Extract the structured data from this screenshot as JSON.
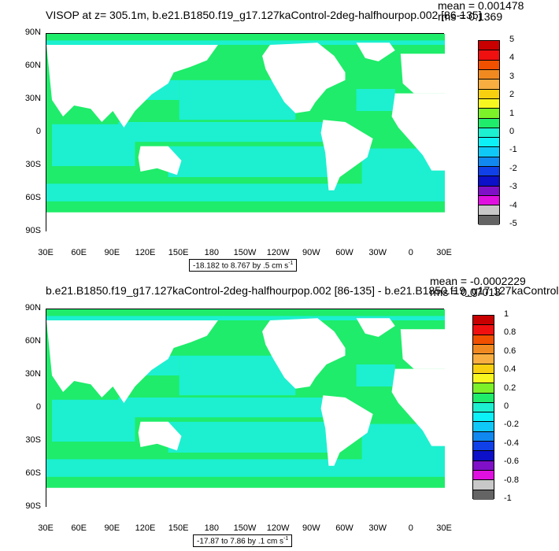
{
  "panels": [
    {
      "title": "VISOP at z= 305.1m, b.e21.B1850.f19_g17.127kaControl-2deg-halfhourpop.002 [86-135]",
      "mean": "mean = 0.001478",
      "rms": "rms = 0.1369",
      "range_text": "-18.182 to 8.767 by .5 cm s",
      "range_sup": "-1",
      "colorbar_labels": [
        "5",
        "4",
        "3",
        "2",
        "1",
        "0",
        "-1",
        "-2",
        "-3",
        "-4",
        "-5"
      ]
    },
    {
      "title": "b.e21.B1850.f19_g17.127kaControl-2deg-halfhourpop.002 [86-135] - b.e21.B1850.f19_g17.127kaControl",
      "mean": "mean = -0.0002229",
      "rms": "rms = 0.07013",
      "range_text": "-17.87 to 7.86 by .1 cm s",
      "range_sup": "-1",
      "colorbar_labels": [
        "1",
        "0.8",
        "0.6",
        "0.4",
        "0.2",
        "0",
        "-0.2",
        "-0.4",
        "-0.6",
        "-0.8",
        "-1"
      ]
    }
  ],
  "y_axis_labels": [
    "90N",
    "60N",
    "30N",
    "0",
    "30S",
    "60S",
    "90S"
  ],
  "x_axis_labels": [
    "30E",
    "60E",
    "90E",
    "120E",
    "150E",
    "180",
    "150W",
    "120W",
    "90W",
    "60W",
    "30W",
    "0",
    "30E"
  ],
  "colors": {
    "ocean_main": "#1fec6a",
    "ocean_low": "#1cf0d0",
    "land": "#ffffff",
    "colorbar": [
      "#c80000",
      "#f01010",
      "#f05000",
      "#f08a20",
      "#f8ae40",
      "#f8d010",
      "#f8f820",
      "#7cf028",
      "#1fec6a",
      "#1cf0d0",
      "#0cf0f8",
      "#10c8f8",
      "#1088f0",
      "#1040e8",
      "#0c10c8",
      "#8010c8",
      "#e010e0",
      "#c8c8c8",
      "#646464"
    ]
  },
  "chart_data": [
    {
      "type": "heatmap",
      "title": "VISOP at z= 305.1m, b.e21.B1850.f19_g17.127kaControl-2deg-halfhourpop.002 [86-135]",
      "xlabel": "",
      "ylabel": "",
      "x_range": [
        "30E",
        "30E"
      ],
      "y_range": [
        "90S",
        "90N"
      ],
      "color_levels": [
        -5,
        -4,
        -3,
        -2,
        -1,
        0,
        1,
        2,
        3,
        4,
        5
      ],
      "mean": 0.001478,
      "rms": 0.1369,
      "data_min": -18.182,
      "data_max": 8.767,
      "contour_interval": 0.5,
      "units": "cm s-1"
    },
    {
      "type": "heatmap",
      "title": "b.e21.B1850.f19_g17.127kaControl-2deg-halfhourpop.002 [86-135] - b.e21.B1850.f19_g17.127kaControl",
      "xlabel": "",
      "ylabel": "",
      "x_range": [
        "30E",
        "30E"
      ],
      "y_range": [
        "90S",
        "90N"
      ],
      "color_levels": [
        -1,
        -0.8,
        -0.6,
        -0.4,
        -0.2,
        0,
        0.2,
        0.4,
        0.6,
        0.8,
        1
      ],
      "mean": -0.0002229,
      "rms": 0.07013,
      "data_min": -17.87,
      "data_max": 7.86,
      "contour_interval": 0.1,
      "units": "cm s-1"
    }
  ]
}
